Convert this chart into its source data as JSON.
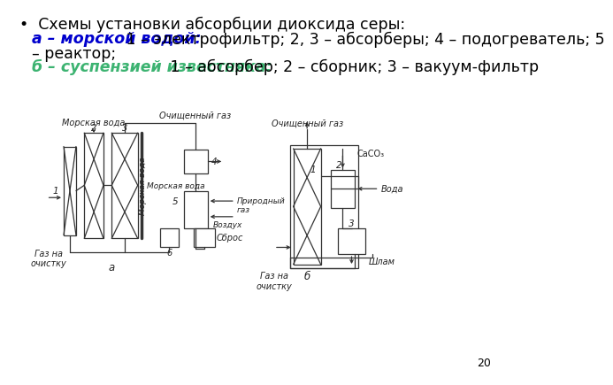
{
  "title_line1": "•  Схемы установки абсорбции диоксида серы:",
  "line2_bold_blue": "а – морской водой:",
  "line2_normal": " 1 – электрофильтр; 2, 3 – абсорберы; 4 – подогреватель; 5",
  "line3": "– реактор;",
  "line4_bold_green": "б – суспензией известняка:",
  "line4_normal": " 1 – абсорбер; 2 – сборник; 3 – вакуум-фильтр",
  "page_number": "20",
  "bg_color": "#ffffff",
  "text_color": "#000000",
  "blue_color": "#0000cd",
  "green_color": "#3cb371"
}
